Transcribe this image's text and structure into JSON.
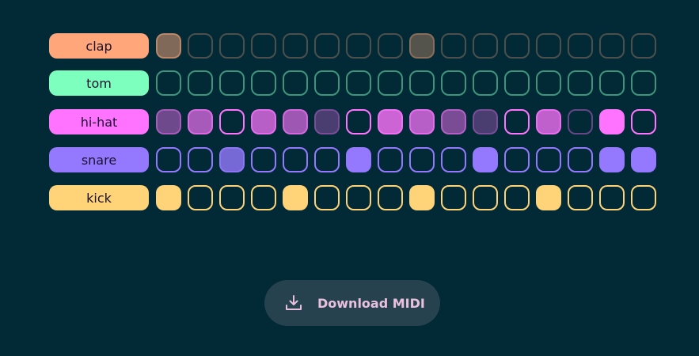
{
  "background": "#012a36",
  "tracks": [
    {
      "name": "clap",
      "color": "#ffa77a",
      "muted": true,
      "steps": [
        0.5,
        0,
        0,
        0,
        0,
        0,
        0,
        0,
        0.33,
        0,
        0,
        0,
        0,
        0,
        0,
        0
      ]
    },
    {
      "name": "tom",
      "color": "#7dffbd",
      "muted": false,
      "steps": [
        0,
        0,
        0,
        0,
        0,
        0,
        0,
        0,
        0,
        0,
        0,
        0,
        0,
        0,
        0,
        0
      ]
    },
    {
      "name": "hi-hat",
      "color": "#ff73ff",
      "muted": false,
      "steps": [
        0.43,
        0.66,
        0,
        0.72,
        0.62,
        0.29,
        0,
        0.8,
        0.72,
        0.48,
        0.29,
        0,
        0.75,
        -0.4,
        1,
        0
      ]
    },
    {
      "name": "snare",
      "color": "#9479ff",
      "muted": false,
      "steps": [
        0,
        0,
        0.8,
        0,
        0,
        0,
        1,
        0,
        0,
        0,
        1,
        0,
        0,
        0,
        1,
        1
      ]
    },
    {
      "name": "kick",
      "color": "#ffd479",
      "muted": false,
      "steps": [
        1,
        0,
        0,
        0,
        1,
        0,
        0,
        0,
        1,
        0,
        0,
        0,
        1,
        0,
        0,
        0
      ]
    }
  ],
  "download": {
    "label": "Download MIDI",
    "icon": "download-icon",
    "color": "#e9c0de"
  }
}
